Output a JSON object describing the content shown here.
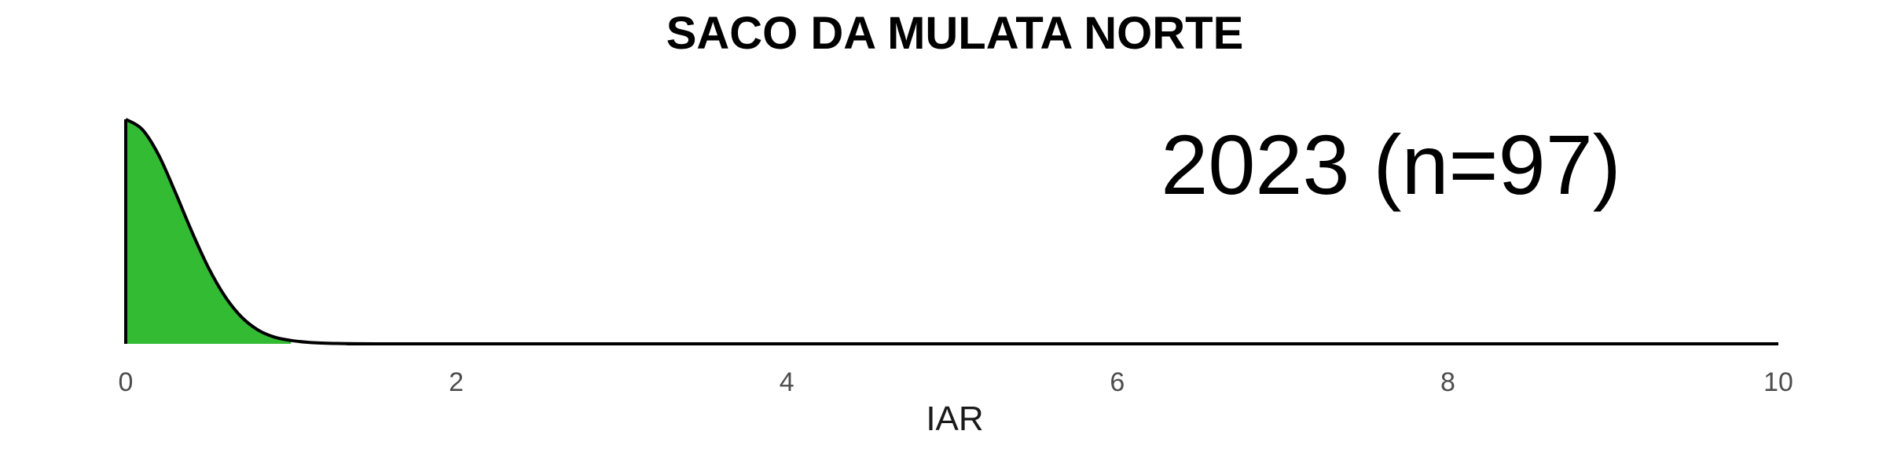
{
  "chart_data": {
    "type": "area",
    "title": "SACO DA MULATA NORTE",
    "annotation": "2023 (n=97)",
    "xlabel": "IAR",
    "ylabel": "",
    "xlim": [
      0,
      10
    ],
    "xticks": [
      0,
      2,
      4,
      6,
      8,
      10
    ],
    "grid": false,
    "fill_color": "#33bb33",
    "line_color": "#000000",
    "fill_range": [
      0,
      1
    ],
    "series": [
      {
        "x": [
          0,
          0.1,
          0.2,
          0.3,
          0.4,
          0.5,
          0.6,
          0.7,
          0.8,
          0.9,
          1.0,
          1.1,
          1.2,
          1.3,
          1.4,
          1.5,
          1.75,
          2,
          10
        ],
        "y": [
          1.0,
          0.955,
          0.84,
          0.675,
          0.5,
          0.34,
          0.212,
          0.12,
          0.062,
          0.03,
          0.015,
          0.007,
          0.003,
          0.0014,
          0.0006,
          0.0002,
          5e-05,
          0,
          0
        ]
      }
    ]
  }
}
